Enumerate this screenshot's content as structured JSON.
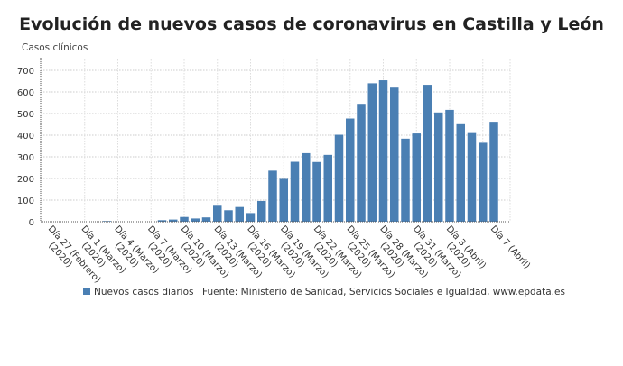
{
  "chart_data": {
    "type": "bar",
    "title": "Evolución de nuevos casos de coronavirus en Castilla y León",
    "ylabel": "Casos clínicos",
    "xlabel": "",
    "ylim": [
      0,
      750
    ],
    "yticks": [
      0,
      100,
      200,
      300,
      400,
      500,
      600,
      700
    ],
    "grid": true,
    "legend_placement": "bottom",
    "bar_color": "#4a7fb3",
    "categories": [
      "Feb 27",
      "Feb 28",
      "Feb 29",
      "Mar 1",
      "Mar 2",
      "Mar 3",
      "Mar 4",
      "Mar 5",
      "Mar 6",
      "Mar 7",
      "Mar 8",
      "Mar 9",
      "Mar 10",
      "Mar 11",
      "Mar 12",
      "Mar 13",
      "Mar 14",
      "Mar 15",
      "Mar 16",
      "Mar 17",
      "Mar 18",
      "Mar 19",
      "Mar 20",
      "Mar 21",
      "Mar 22",
      "Mar 23",
      "Mar 24",
      "Mar 25",
      "Mar 26",
      "Mar 27",
      "Mar 28",
      "Mar 29",
      "Mar 30",
      "Mar 31",
      "Apr 1",
      "Apr 2",
      "Apr 3",
      "Apr 4",
      "Apr 5",
      "Apr 6",
      "Apr 7"
    ],
    "series": [
      {
        "name": "Nuevos casos diarios",
        "values": [
          0,
          0,
          0,
          0,
          0,
          3,
          0,
          0,
          0,
          0,
          7,
          10,
          22,
          15,
          20,
          78,
          53,
          68,
          40,
          96,
          236,
          198,
          277,
          317,
          276,
          309,
          402,
          477,
          545,
          640,
          654,
          620,
          384,
          408,
          633,
          505,
          517,
          455,
          414,
          365,
          462
        ]
      }
    ],
    "tick_labels": [
      {
        "index": 0,
        "line1": "Día 27 (Febrero)",
        "line2": "(2020)"
      },
      {
        "index": 3,
        "line1": "Día 1 (Marzo)",
        "line2": "(2020)"
      },
      {
        "index": 6,
        "line1": "Día 4 (Marzo)",
        "line2": "(2020)"
      },
      {
        "index": 9,
        "line1": "Día 7 (Marzo)",
        "line2": "(2020)"
      },
      {
        "index": 12,
        "line1": "Día 10 (Marzo)",
        "line2": "(2020)"
      },
      {
        "index": 15,
        "line1": "Día 13 (Marzo)",
        "line2": "(2020)"
      },
      {
        "index": 18,
        "line1": "Día 16 (Marzo)",
        "line2": "(2020)"
      },
      {
        "index": 21,
        "line1": "Día 19 (Marzo)",
        "line2": "(2020)"
      },
      {
        "index": 24,
        "line1": "Día 22 (Marzo)",
        "line2": "(2020)"
      },
      {
        "index": 27,
        "line1": "Día 25 (Marzo)",
        "line2": "(2020)"
      },
      {
        "index": 30,
        "line1": "Día 28 (Marzo)",
        "line2": "(2020)"
      },
      {
        "index": 33,
        "line1": "Día 31 (Marzo)",
        "line2": "(2020)"
      },
      {
        "index": 36,
        "line1": "Día 3 (Abril)",
        "line2": "(2020)"
      },
      {
        "index": 40,
        "line1": "Día 7 (Abril)",
        "line2": ""
      }
    ],
    "legend": [
      "Nuevos casos diarios"
    ],
    "source": "Fuente: Ministerio de Sanidad, Servicios Sociales e Igualdad, www.epdata.es"
  }
}
